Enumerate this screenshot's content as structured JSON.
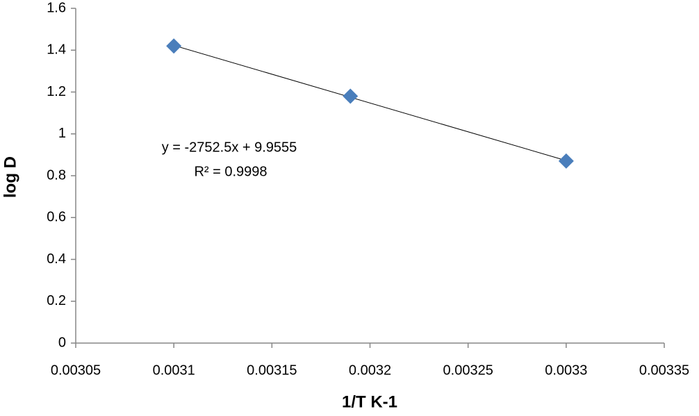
{
  "chart_data": {
    "type": "scatter",
    "x_label": "1/T K-1",
    "y_label": "log D",
    "annotations": [
      "y = -2752.5x + 9.9555",
      "R² = 0.9998"
    ],
    "x": [
      0.0031,
      0.00319,
      0.0033
    ],
    "series": [
      {
        "color": "#4a7ebb",
        "values": [
          1.42,
          1.18,
          0.87
        ]
      }
    ],
    "xlim": [
      0.00305,
      0.00335
    ],
    "xticks": [
      0.00305,
      0.0031,
      0.00315,
      0.0032,
      0.00325,
      0.0033,
      0.00335
    ],
    "ylim": [
      0,
      1.6
    ],
    "yticks": [
      0,
      0.2,
      0.4,
      0.6,
      0.8,
      1,
      1.2,
      1.4,
      1.6
    ],
    "grid": false,
    "trendline": true
  }
}
